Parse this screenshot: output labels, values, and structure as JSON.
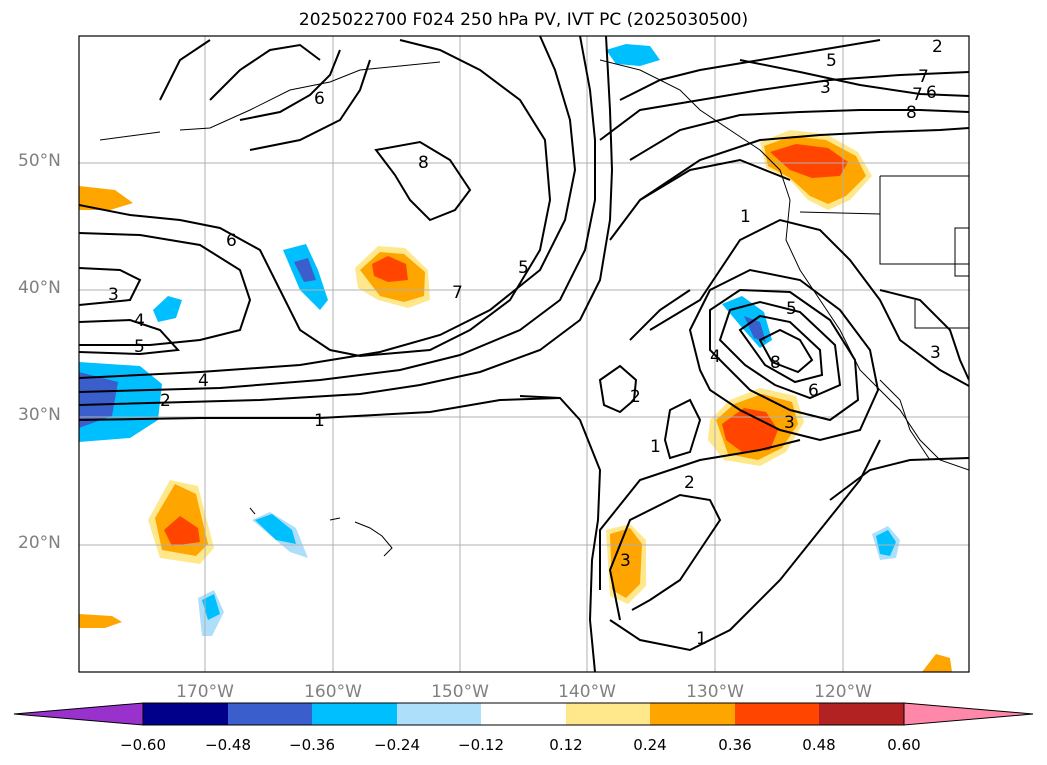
{
  "title": "2025022700 F024 250 hPa PV, IVT PC (2025030500)",
  "lat_labels": [
    "50°N",
    "40°N",
    "30°N",
    "20°N"
  ],
  "lon_labels": [
    "170°W",
    "160°W",
    "150°W",
    "140°W",
    "130°W",
    "120°W"
  ],
  "colorbar": {
    "tick_labels": [
      "−0.60",
      "−0.48",
      "−0.36",
      "−0.24",
      "−0.12",
      "0.12",
      "0.24",
      "0.36",
      "0.48",
      "0.60"
    ],
    "colors": [
      "#9932CC",
      "#00008B",
      "#3A5FCD",
      "#00BFFF",
      "#ADDFFA",
      "#FFFFFF",
      "#FFE88C",
      "#FFA500",
      "#FF4500",
      "#B22222",
      "#FF88AA"
    ]
  },
  "contour_labels": [
    "3",
    "4",
    "5",
    "6",
    "7",
    "8",
    "1",
    "2",
    "3",
    "4",
    "5",
    "6",
    "7",
    "8",
    "1",
    "2",
    "3",
    "4",
    "5",
    "6",
    "7",
    "1",
    "2",
    "3",
    "5",
    "6",
    "8",
    "1",
    "2",
    "3"
  ]
}
